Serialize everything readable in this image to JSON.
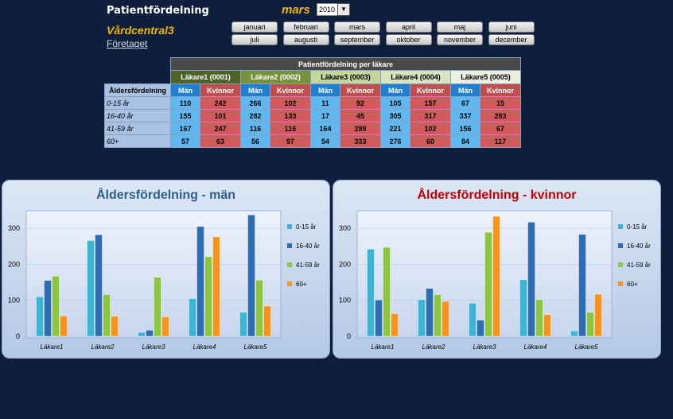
{
  "header": {
    "title": "Patientfördelning",
    "selected_month": "mars",
    "year": "2010",
    "center": "Vårdcentral3",
    "company_link": "Företaget"
  },
  "months_row1": [
    "januari",
    "februari",
    "mars",
    "april",
    "maj",
    "juni"
  ],
  "months_row2": [
    "juli",
    "augusti",
    "september",
    "oktober",
    "november",
    "december"
  ],
  "table": {
    "title": "Patientfördelning per läkare",
    "corner_label": "Åldersfördelning",
    "men_label": "Män",
    "women_label": "Kvinnor",
    "doctors": [
      "Läkare1 (0001)",
      "Läkare2 (0002)",
      "Läkare3 (0003)",
      "Läkare4 (0004)",
      "Läkare5 (0005)"
    ],
    "doctor_colors": [
      "#4f6228",
      "#76923c",
      "#c3d69b",
      "#d7e4bd",
      "#ebf1de"
    ],
    "doctor_text_colors": [
      "#ffffff",
      "#ffffff",
      "#000000",
      "#000000",
      "#000000"
    ],
    "rows": [
      {
        "age": "0-15 år",
        "values": [
          "110",
          "242",
          "266",
          "102",
          "11",
          "92",
          "105",
          "157",
          "67",
          "15"
        ]
      },
      {
        "age": "16-40 år",
        "values": [
          "155",
          "101",
          "282",
          "133",
          "17",
          "45",
          "305",
          "317",
          "337",
          "283"
        ]
      },
      {
        "age": "41-59 år",
        "values": [
          "167",
          "247",
          "116",
          "116",
          "164",
          "289",
          "221",
          "102",
          "156",
          "67"
        ]
      },
      {
        "age": "60+",
        "values": [
          "57",
          "63",
          "56",
          "97",
          "54",
          "333",
          "276",
          "60",
          "84",
          "117"
        ]
      }
    ]
  },
  "chart_data": [
    {
      "type": "bar",
      "title": "Åldersfördelning -  män",
      "title_color": "#2e5d8c",
      "categories": [
        "Läkare1",
        "Läkare2",
        "Läkare3",
        "Läkare4",
        "Läkare5"
      ],
      "series": [
        {
          "name": "0-15 år",
          "values": [
            110,
            266,
            11,
            105,
            67
          ],
          "color": "#3cb4d8"
        },
        {
          "name": "16-40 år",
          "values": [
            155,
            282,
            17,
            305,
            337
          ],
          "color": "#2e6db4"
        },
        {
          "name": "41-59 år",
          "values": [
            167,
            116,
            164,
            221,
            156
          ],
          "color": "#8cc63f"
        },
        {
          "name": "60+",
          "values": [
            57,
            56,
            54,
            276,
            84
          ],
          "color": "#f7941d"
        }
      ],
      "ylim": [
        0,
        340
      ],
      "yticks": [
        "0",
        "100",
        "200",
        "300"
      ],
      "ytick_values": [
        0,
        100,
        200,
        300
      ],
      "legend": "right"
    },
    {
      "type": "bar",
      "title": "Åldersfördelning -  kvinnor",
      "title_color": "#c00000",
      "categories": [
        "Läkare1",
        "Läkare2",
        "Läkare3",
        "Läkare4",
        "Läkare5"
      ],
      "series": [
        {
          "name": "0-15 år",
          "values": [
            242,
            102,
            92,
            157,
            15
          ],
          "color": "#3cb4d8"
        },
        {
          "name": "16-40 år",
          "values": [
            101,
            133,
            45,
            317,
            283
          ],
          "color": "#2e6db4"
        },
        {
          "name": "41-59 år",
          "values": [
            247,
            116,
            289,
            102,
            67
          ],
          "color": "#8cc63f"
        },
        {
          "name": "60+",
          "values": [
            63,
            97,
            333,
            60,
            117
          ],
          "color": "#f7941d"
        }
      ],
      "ylim": [
        0,
        340
      ],
      "yticks": [
        "0",
        "100",
        "200",
        "300"
      ],
      "ytick_values": [
        0,
        100,
        200,
        300
      ],
      "legend": "right"
    }
  ]
}
